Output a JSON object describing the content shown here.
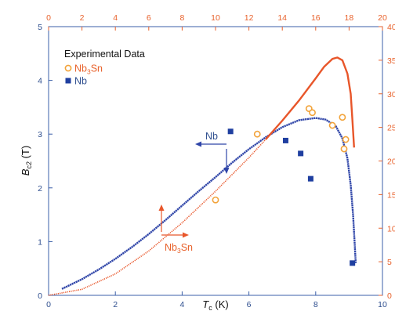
{
  "chart_data": {
    "type": "scatter",
    "title": "",
    "xlabel": "T_c (K)",
    "xlabel_main": "T",
    "xlabel_sub": "c",
    "xlabel_unit": " (K)",
    "ylabel": "B_c2 (T)",
    "ylabel_main": "B",
    "ylabel_sub": "c2",
    "ylabel_unit": " (T)",
    "xlim": [
      0,
      10
    ],
    "ylim": [
      0,
      5
    ],
    "x2lim": [
      0,
      20
    ],
    "y2lim": [
      0,
      40
    ],
    "x_ticks": [
      "0",
      "2",
      "4",
      "6",
      "8",
      "10"
    ],
    "y_ticks": [
      "0",
      "1",
      "2",
      "3",
      "4",
      "5"
    ],
    "x2_ticks": [
      "0",
      "2",
      "4",
      "6",
      "8",
      "10",
      "12",
      "14",
      "16",
      "18",
      "20"
    ],
    "y2_ticks": [
      "0",
      "5",
      "10",
      "15",
      "20",
      "25",
      "30",
      "35",
      "40"
    ],
    "legend": {
      "title": "Experimental Data",
      "placement": "top-left",
      "entries": [
        {
          "label_main": "Nb",
          "label_sub": "3",
          "label_tail": "Sn",
          "marker": "open-circle",
          "color": "#f2a33a"
        },
        {
          "label_main": "Nb",
          "label_sub": "",
          "label_tail": "",
          "marker": "filled-square",
          "color": "#1f3fa0"
        }
      ]
    },
    "annotations": [
      {
        "label_main": "Nb",
        "label_sub": "",
        "label_tail": "",
        "color": "#2f4f8f"
      },
      {
        "label_main": "Nb",
        "label_sub": "3",
        "label_tail": "Sn",
        "color": "#e8622c"
      }
    ],
    "curves": {
      "nb": {
        "name": "Nb",
        "color": "#2f45a8",
        "axes": "bottom-left",
        "points": [
          [
            0.4,
            0.12
          ],
          [
            1,
            0.3
          ],
          [
            1.5,
            0.48
          ],
          [
            2,
            0.68
          ],
          [
            2.5,
            0.9
          ],
          [
            3,
            1.14
          ],
          [
            3.5,
            1.4
          ],
          [
            4,
            1.67
          ],
          [
            4.5,
            1.94
          ],
          [
            5,
            2.2
          ],
          [
            5.5,
            2.47
          ],
          [
            6,
            2.72
          ],
          [
            6.5,
            2.94
          ],
          [
            7,
            3.13
          ],
          [
            7.5,
            3.26
          ],
          [
            8,
            3.3
          ],
          [
            8.3,
            3.27
          ],
          [
            8.6,
            3.15
          ],
          [
            8.8,
            2.92
          ],
          [
            8.95,
            2.55
          ],
          [
            9.05,
            2.05
          ],
          [
            9.12,
            1.5
          ],
          [
            9.17,
            0.95
          ],
          [
            9.2,
            0.6
          ]
        ]
      },
      "nb3sn": {
        "name": "Nb3Sn",
        "color": "#e8562a",
        "axes": "top-right",
        "points": [
          [
            0,
            0
          ],
          [
            2,
            0.9
          ],
          [
            4,
            3.2
          ],
          [
            6,
            6.6
          ],
          [
            8,
            10.8
          ],
          [
            10,
            15.5
          ],
          [
            12,
            20.5
          ],
          [
            13,
            23.2
          ],
          [
            14,
            26
          ],
          [
            15,
            29
          ],
          [
            16,
            32.3
          ],
          [
            16.5,
            34
          ],
          [
            17,
            35.2
          ],
          [
            17.3,
            35.4
          ],
          [
            17.6,
            35
          ],
          [
            17.9,
            33
          ],
          [
            18.1,
            30
          ],
          [
            18.2,
            26
          ],
          [
            18.3,
            22
          ]
        ]
      }
    },
    "series": [
      {
        "name": "Nb3Sn",
        "marker": "open-circle",
        "color": "#f2a33a",
        "axes": "top-right",
        "x": [
          10.0,
          12.5,
          15.6,
          15.8,
          17.0,
          17.6,
          17.8,
          17.7
        ],
        "y": [
          14.2,
          24.0,
          27.8,
          27.2,
          25.3,
          26.5,
          23.2,
          21.8
        ]
      },
      {
        "name": "Nb",
        "marker": "filled-square",
        "color": "#1f3fa0",
        "axes": "bottom-left",
        "x": [
          5.45,
          7.1,
          7.55,
          7.85,
          9.1
        ],
        "y": [
          3.05,
          2.88,
          2.64,
          2.17,
          0.6
        ]
      }
    ]
  }
}
